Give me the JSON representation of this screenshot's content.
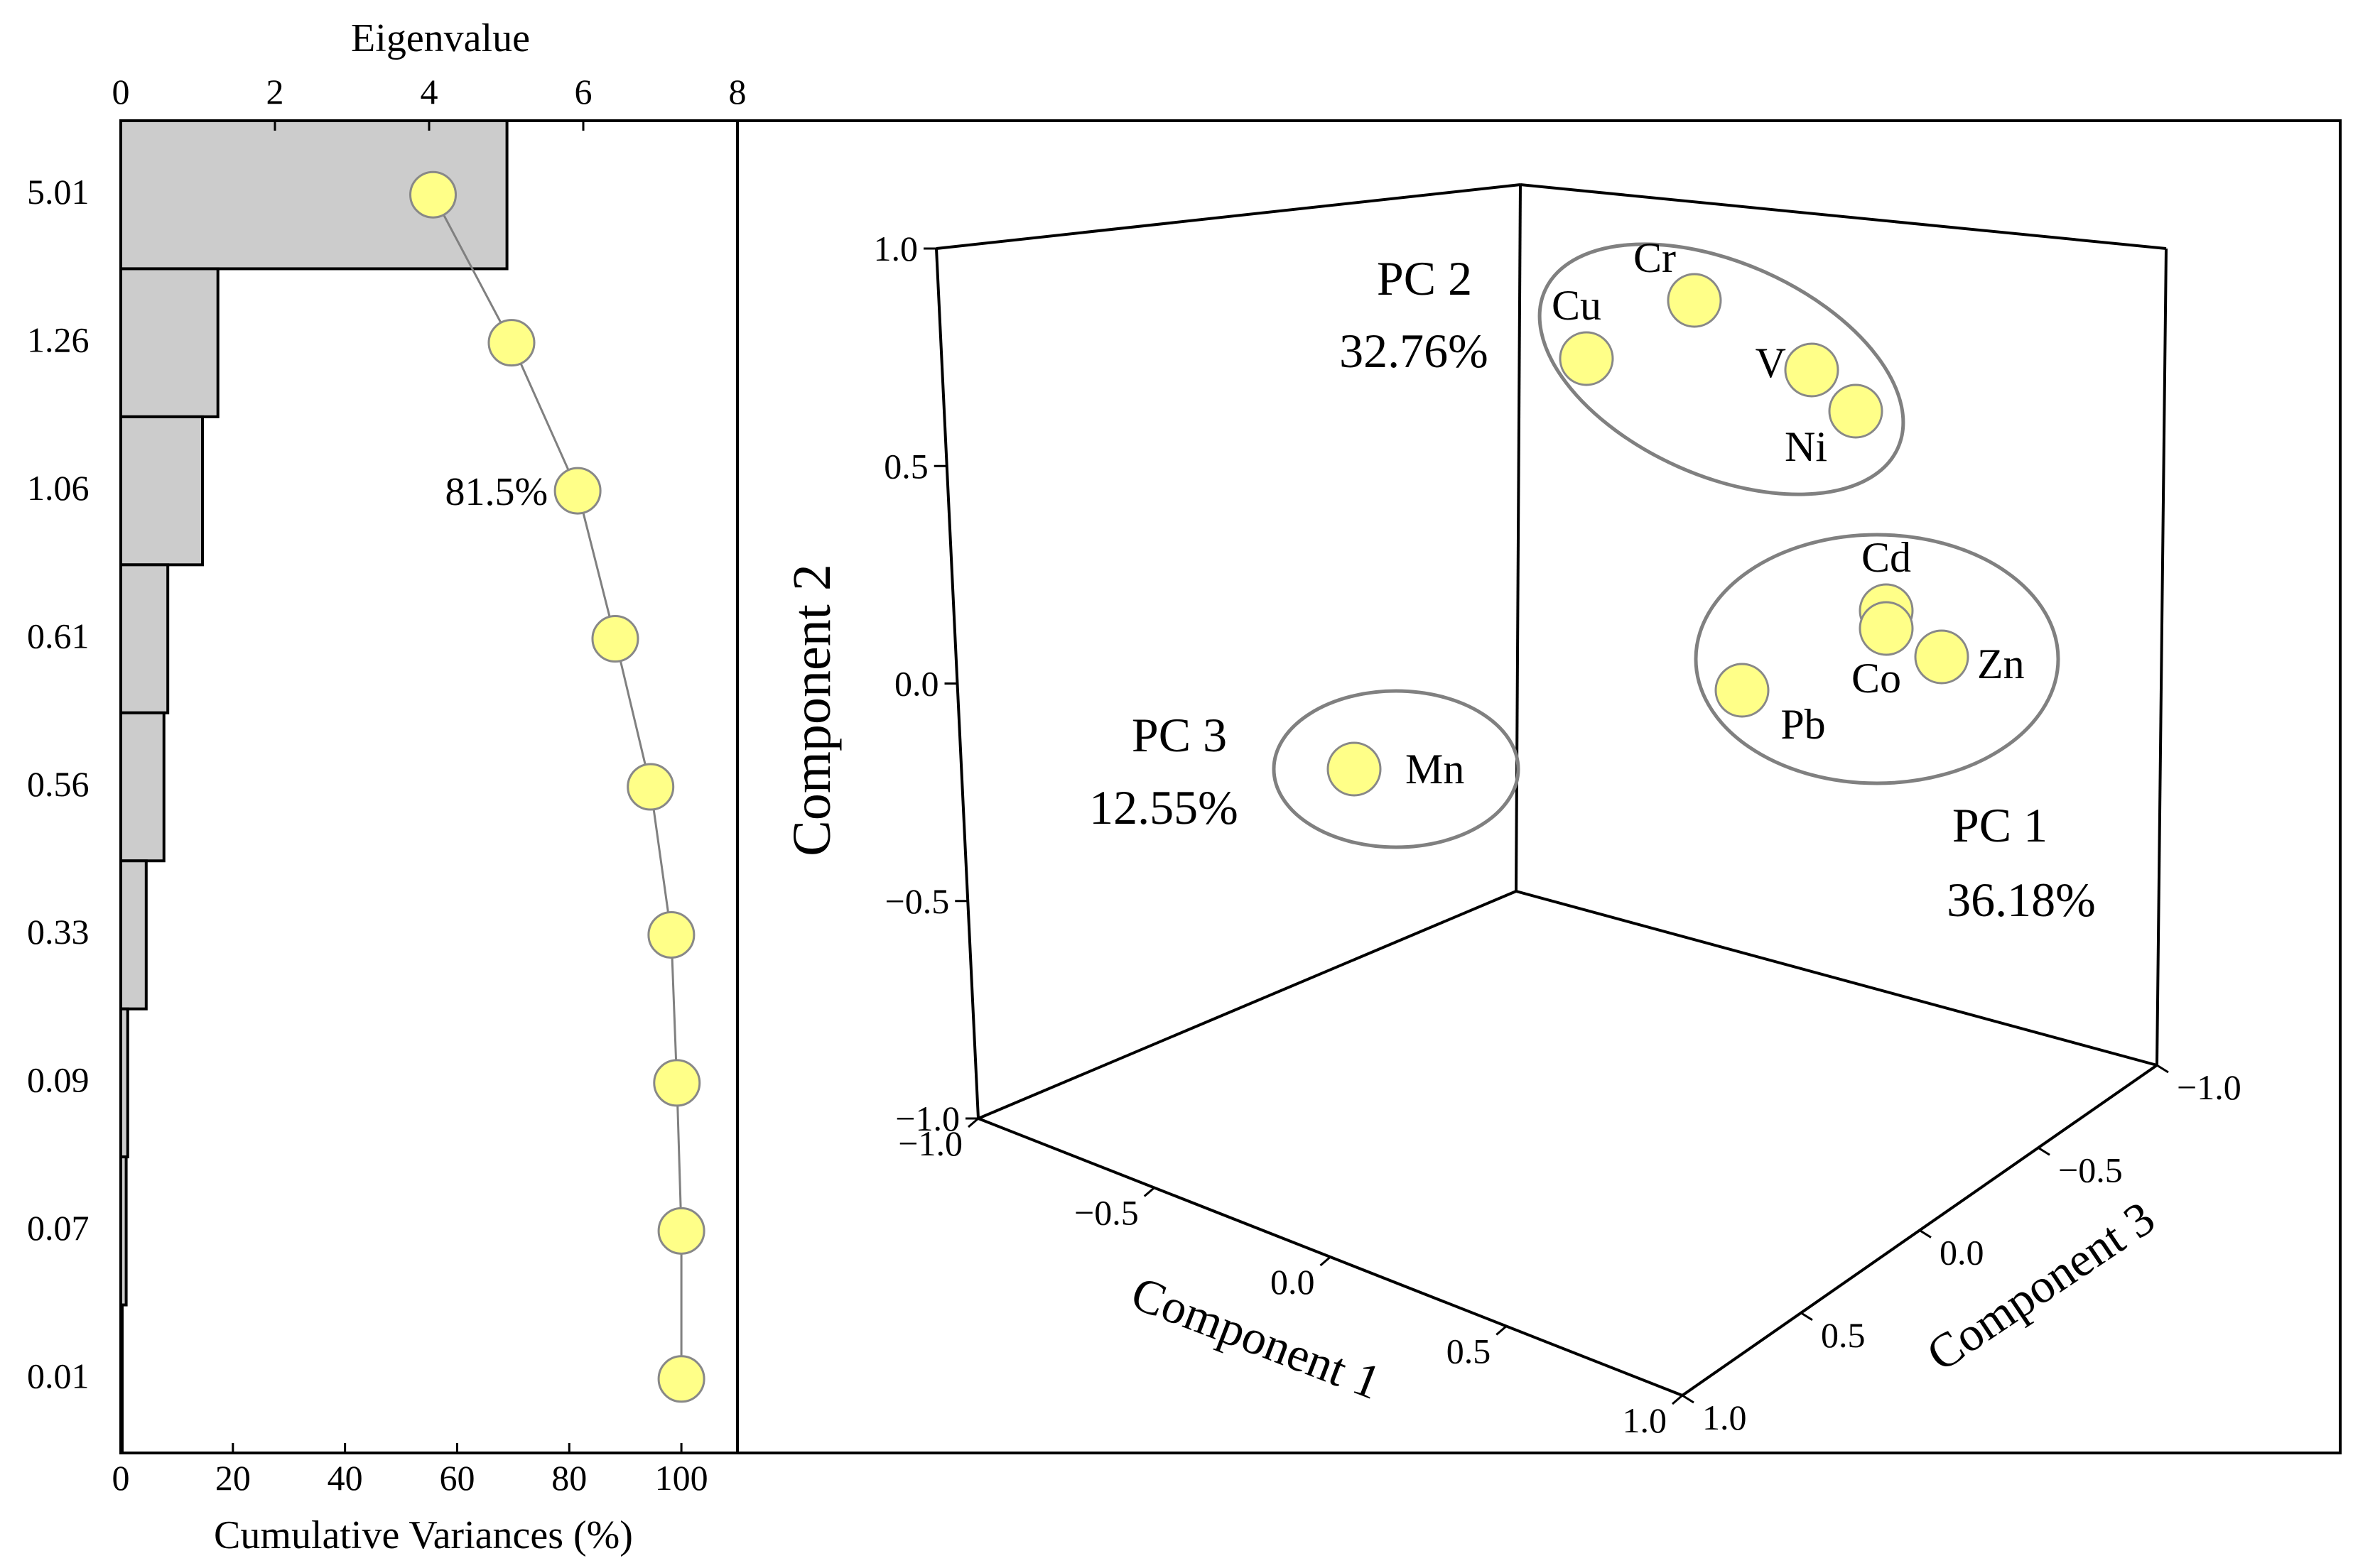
{
  "colors": {
    "marker_fill": "#ffff88",
    "marker_stroke": "#888888",
    "bar_fill": "#cccccc",
    "bar_stroke": "#000000",
    "ellipse_stroke": "#808080",
    "axis": "#000000"
  },
  "chart_data": [
    {
      "type": "bar",
      "orientation": "horizontal",
      "title": "",
      "top_axis_label": "Eigenvalue",
      "top_axis_range": [
        0,
        8
      ],
      "top_axis_ticks": [
        "0",
        "2",
        "4",
        "6",
        "8"
      ],
      "bottom_axis_label": "Cumulative Variances (%)",
      "bottom_axis_range": [
        0,
        110
      ],
      "bottom_axis_ticks": [
        "0",
        "20",
        "40",
        "60",
        "80",
        "100"
      ],
      "categories": [
        "5.01",
        "1.26",
        "1.06",
        "0.61",
        "0.56",
        "0.33",
        "0.09",
        "0.07",
        "0.01"
      ],
      "series": [
        {
          "name": "Eigenvalue",
          "type": "bar",
          "values": [
            5.01,
            1.26,
            1.06,
            0.61,
            0.56,
            0.33,
            0.09,
            0.07,
            0.01
          ]
        },
        {
          "name": "Cumulative Variances (%)",
          "type": "line",
          "values": [
            55.7,
            69.7,
            81.5,
            88.2,
            94.5,
            98.2,
            99.2,
            100,
            100
          ]
        }
      ],
      "annotations": [
        {
          "text": "81.5%",
          "point_index": 2
        }
      ]
    },
    {
      "type": "scatter",
      "projection": "3d",
      "title": "",
      "x_axis_label": "Component 1",
      "y_axis_label": "Component 2",
      "z_axis_label": "Component 3",
      "x_range": [
        -1.0,
        1.0
      ],
      "y_range": [
        -1.0,
        1.0
      ],
      "z_range": [
        -1.0,
        1.0
      ],
      "x_ticks": [
        "−1.0",
        "−0.5",
        "0.0",
        "0.5",
        "1.0"
      ],
      "y_ticks": [
        "−1.0",
        "−0.5",
        "0.0",
        "0.5",
        "1.0"
      ],
      "z_ticks": [
        "−1.0",
        "−0.5",
        "0.0",
        "0.5",
        "1.0"
      ],
      "points": [
        {
          "label": "Cr",
          "x": 0.2,
          "y": 0.95,
          "z": -0.35
        },
        {
          "label": "Cu",
          "x": 0.05,
          "y": 0.86,
          "z": -0.4
        },
        {
          "label": "V",
          "x": 0.38,
          "y": 0.9,
          "z": -0.3
        },
        {
          "label": "Ni",
          "x": 0.43,
          "y": 0.83,
          "z": -0.28
        },
        {
          "label": "Cd",
          "x": 0.62,
          "y": 0.26,
          "z": -0.1
        },
        {
          "label": "Co",
          "x": 0.62,
          "y": 0.22,
          "z": -0.1
        },
        {
          "label": "Zn",
          "x": 0.7,
          "y": 0.18,
          "z": -0.1
        },
        {
          "label": "Pb",
          "x": 0.45,
          "y": 0.06,
          "z": -0.15
        },
        {
          "label": "Mn",
          "x": -0.2,
          "y": -0.15,
          "z": 0.5
        }
      ],
      "groups": [
        {
          "name": "PC 2",
          "percent": "32.76%",
          "members": [
            "Cr",
            "Cu",
            "V",
            "Ni"
          ]
        },
        {
          "name": "PC 1",
          "percent": "36.18%",
          "members": [
            "Cd",
            "Co",
            "Zn",
            "Pb"
          ]
        },
        {
          "name": "PC 3",
          "percent": "12.55%",
          "members": [
            "Mn"
          ]
        }
      ]
    }
  ]
}
